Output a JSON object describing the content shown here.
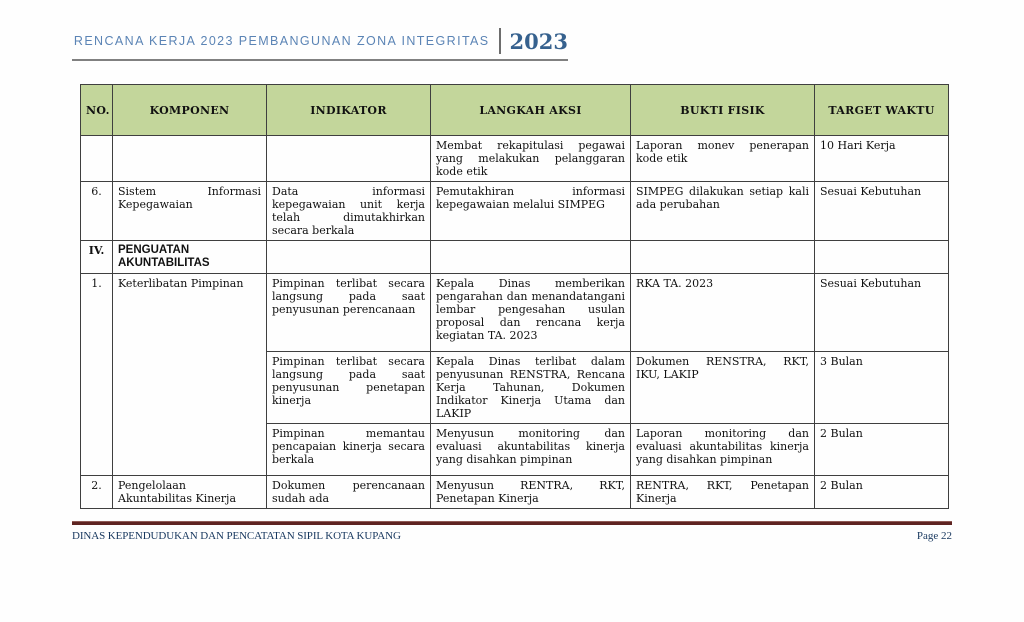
{
  "header": {
    "title": "RENCANA KERJA 2023 PEMBANGUNAN ZONA INTEGRITAS",
    "year": "2023"
  },
  "table": {
    "columns": [
      "NO.",
      "KOMPONEN",
      "INDIKATOR",
      "LANGKAH AKSI",
      "BUKTI FISIK",
      "TARGET WAKTU"
    ],
    "rows": [
      {
        "cells": [
          {
            "text": "",
            "type": "no"
          },
          {
            "text": ""
          },
          {
            "text": ""
          },
          {
            "text": "Membat rekapitulasi pegawai yang melakukan pelanggaran kode etik"
          },
          {
            "text": "Laporan monev penerapan kode etik"
          },
          {
            "text": "10 Hari Kerja"
          }
        ]
      },
      {
        "cells": [
          {
            "text": "6.",
            "type": "no"
          },
          {
            "text": "Sistem Informasi Kepegawaian"
          },
          {
            "text": "Data informasi kepegawaian unit kerja telah dimutakhirkan secara berkala"
          },
          {
            "text": "Pemutakhiran informasi kepegawaian melalui SIMPEG"
          },
          {
            "text": "SIMPEG dilakukan setiap kali ada perubahan"
          },
          {
            "text": "Sesuai Kebutuhan"
          }
        ]
      },
      {
        "section": true,
        "cells": [
          {
            "text": "IV.",
            "type": "no"
          },
          {
            "text": "PENGUATAN AKUNTABILITAS",
            "type": "section-title"
          },
          {
            "text": ""
          },
          {
            "text": ""
          },
          {
            "text": ""
          },
          {
            "text": ""
          }
        ]
      },
      {
        "cells": [
          {
            "text": "1.",
            "type": "no",
            "rowspan": 3
          },
          {
            "text": "Keterlibatan Pimpinan",
            "rowspan": 3
          },
          {
            "text": "Pimpinan terlibat secara langsung pada saat penyusunan perencanaan"
          },
          {
            "text": "Kepala Dinas memberikan pengarahan dan menandatangani lembar pengesahan usulan proposal dan rencana kerja kegiatan TA. 2023"
          },
          {
            "text": "RKA TA. 2023"
          },
          {
            "text": "Sesuai Kebutuhan"
          }
        ]
      },
      {
        "cells": [
          {
            "text": "Pimpinan terlibat secara langsung pada saat penyusunan penetapan kinerja"
          },
          {
            "text": "Kepala Dinas terlibat dalam penyusunan RENSTRA, Rencana Kerja Tahunan, Dokumen Indikator Kinerja Utama dan LAKIP"
          },
          {
            "text": "Dokumen RENSTRA, RKT, IKU, LAKIP"
          },
          {
            "text": "3 Bulan"
          }
        ]
      },
      {
        "cells": [
          {
            "text": "Pimpinan memantau pencapaian kinerja secara berkala"
          },
          {
            "text": "Menyusun monitoring dan evaluasi akuntabilitas kinerja yang disahkan pimpinan"
          },
          {
            "text": "Laporan monitoring dan evaluasi akuntabilitas kinerja yang disahkan pimpinan"
          },
          {
            "text": "2 Bulan"
          }
        ]
      },
      {
        "cells": [
          {
            "text": "2.",
            "type": "no"
          },
          {
            "text": "Pengelolaan Akuntabilitas Kinerja"
          },
          {
            "text": "Dokumen perencanaan sudah ada"
          },
          {
            "text": "Menyusun RENTRA, RKT, Penetapan Kinerja"
          },
          {
            "text": "RENTRA, RKT, Penetapan Kinerja"
          },
          {
            "text": "2 Bulan"
          }
        ]
      }
    ]
  },
  "footer": {
    "organization": "DINAS KEPENDUDUKAN DAN PENCATATAN SIPIL KOTA KUPANG",
    "page_label": "Page 22"
  },
  "colors": {
    "table_header_bg": "#c3d69b",
    "title_text": "#5b84b5",
    "year_text": "#36618e",
    "footer_rule": "#5e2421",
    "footer_text": "#17375e"
  }
}
